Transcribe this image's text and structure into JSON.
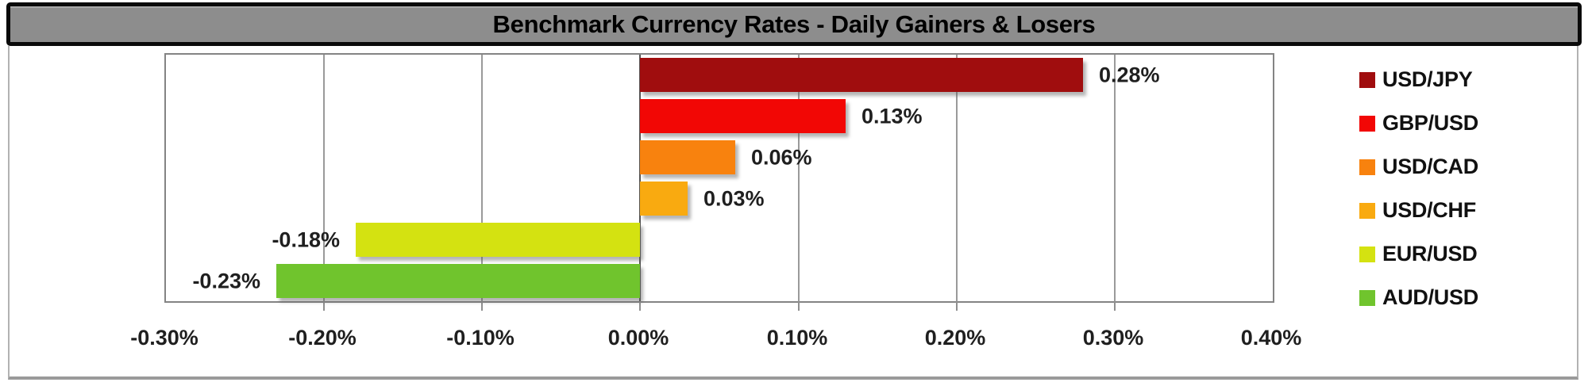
{
  "title": "Benchmark Currency Rates - Daily Gainers & Losers",
  "chart_data": {
    "type": "bar",
    "orientation": "horizontal",
    "title": "Benchmark Currency Rates - Daily Gainers & Losers",
    "categories": [
      "USD/JPY",
      "GBP/USD",
      "USD/CAD",
      "USD/CHF",
      "EUR/USD",
      "AUD/USD"
    ],
    "values": [
      0.28,
      0.13,
      0.06,
      0.03,
      -0.18,
      -0.23
    ],
    "value_labels": [
      "0.28%",
      "0.13%",
      "0.06%",
      "0.03%",
      "-0.18%",
      "-0.23%"
    ],
    "bar_colors": [
      "#a00d0e",
      "#f20705",
      "#f8820e",
      "#f9aa10",
      "#d4e211",
      "#70c42d"
    ],
    "x_ticks": [
      "-0.30%",
      "-0.20%",
      "-0.10%",
      "0.00%",
      "0.10%",
      "0.20%",
      "0.30%",
      "0.40%"
    ],
    "x_tick_values": [
      -0.3,
      -0.2,
      -0.1,
      0.0,
      0.1,
      0.2,
      0.3,
      0.4
    ],
    "xlim": [
      -0.3,
      0.4
    ],
    "ylabel": "",
    "xlabel": "",
    "grid": "vertical",
    "legend_position": "right",
    "value_format": "percent"
  },
  "colors": {
    "title_bg": "#8d8d8d",
    "title_text": "#000000",
    "gridline": "#9a9a9a",
    "zero_line": "#555555",
    "plot_border": "#848484"
  }
}
